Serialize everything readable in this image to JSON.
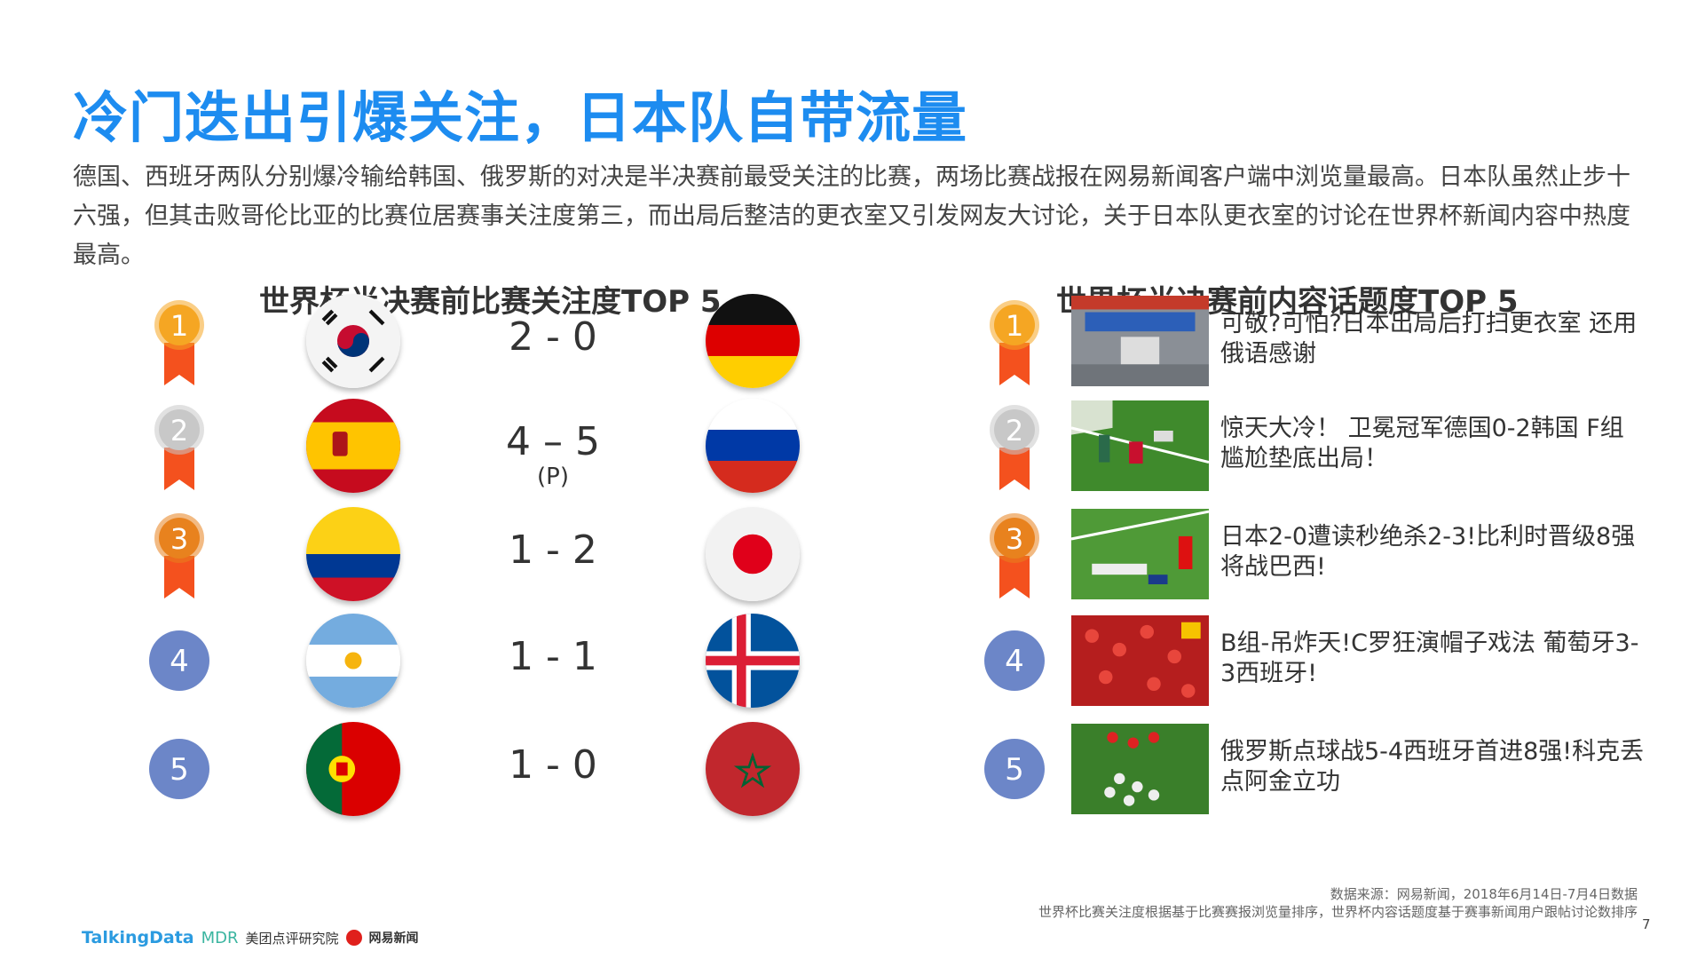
{
  "title": "冷门迭出引爆关注，日本队自带流量",
  "paragraph": "德国、西班牙两队分别爆冷输给韩国、俄罗斯的对决是半决赛前最受关注的比赛，两场比赛战报在网易新闻客户端中浏览量最高。日本队虽然止步十六强，但其击败哥伦比亚的比赛位居赛事关注度第三，而出局后整洁的更衣室又引发网友大讨论，关于日本队更衣室的讨论在世界杯新闻内容中热度最高。",
  "left": {
    "heading": "世界杯半决赛前比赛关注度TOP 5",
    "matches": [
      {
        "rank": "1",
        "team_a": "korea-flag",
        "score": "2 - 0",
        "team_b": "germany-flag"
      },
      {
        "rank": "2",
        "team_a": "spain-flag",
        "score": "4 – 5",
        "note": "(P)",
        "team_b": "russia-flag"
      },
      {
        "rank": "3",
        "team_a": "colombia-flag",
        "score": "1 - 2",
        "team_b": "japan-flag"
      },
      {
        "rank": "4",
        "team_a": "argentina-flag",
        "score": "1 - 1",
        "team_b": "iceland-flag"
      },
      {
        "rank": "5",
        "team_a": "portugal-flag",
        "score": "1 - 0",
        "team_b": "morocco-flag"
      }
    ]
  },
  "right": {
    "heading": "世界杯半决赛前内容话题度TOP 5",
    "items": [
      {
        "rank": "1",
        "text": "可敬?可怕?日本出局后打扫更衣室 还用俄语感谢"
      },
      {
        "rank": "2",
        "text": "惊天大冷！ 卫冕冠军德国0-2韩国 F组尴尬垫底出局！"
      },
      {
        "rank": "3",
        "text": "日本2-0遭读秒绝杀2-3!比利时晋级8强将战巴西!"
      },
      {
        "rank": "4",
        "text": "B组-吊炸天!C罗狂演帽子戏法 葡萄牙3-3西班牙!"
      },
      {
        "rank": "5",
        "text": "俄罗斯点球战5-4西班牙首进8强!科克丢点阿金立功"
      }
    ]
  },
  "source_line1": "数据来源：网易新闻，2018年6月14日-7月4日数据",
  "source_line2": "世界杯比赛关注度根据基于比赛赛报浏览量排序，世界杯内容话题度基于赛事新闻用户跟帖讨论数排序",
  "page_number": "7",
  "logos": {
    "talkingdata": "TalkingData",
    "mdr": "MDR",
    "meituan": "美团点评研究院",
    "netease": "网易新闻"
  },
  "colors": {
    "title": "#1d8cf0",
    "gold": "#f5a623",
    "silver": "#c8c8c8",
    "bronze": "#e8821e",
    "blue_rank": "#6c86c8",
    "ribbon": "#f4511e"
  }
}
